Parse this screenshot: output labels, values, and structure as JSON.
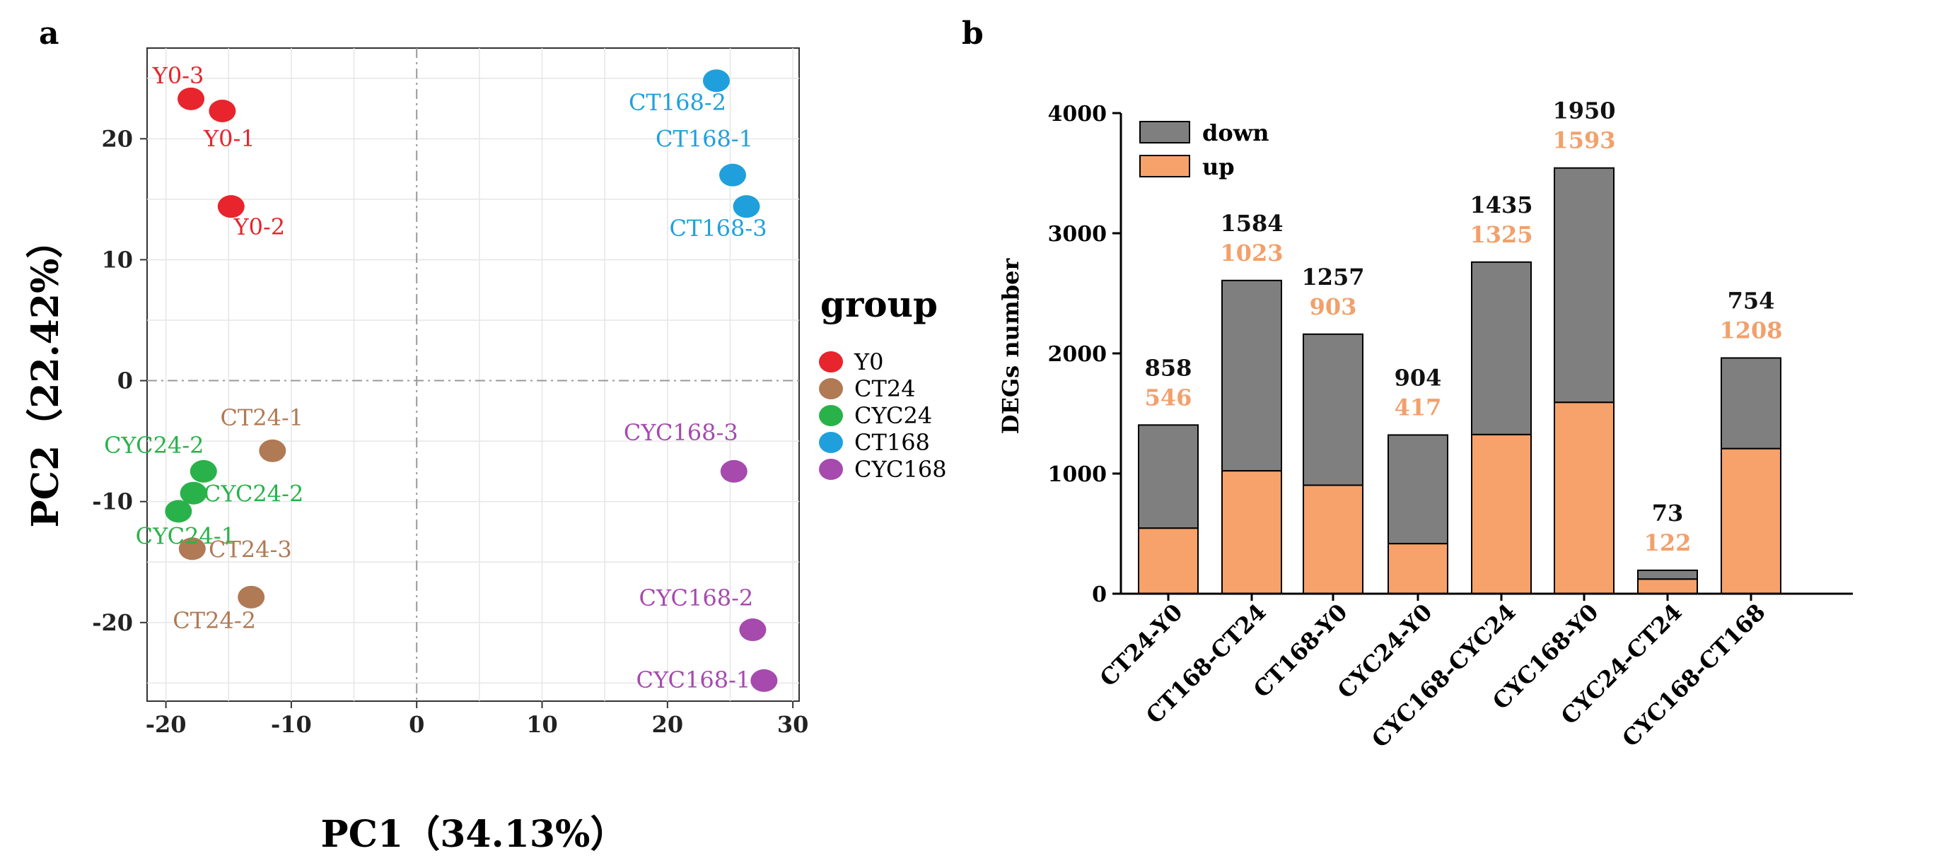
{
  "panels": {
    "a": "a",
    "b": "b"
  },
  "chart_data": [
    {
      "type": "scatter",
      "xlabel": "PC1（34.13%）",
      "ylabel": "PC2（22.42%）",
      "xlim": [
        -21.5,
        30.5
      ],
      "ylim": [
        -26.5,
        27.5
      ],
      "xticks": [
        -20,
        -10,
        0,
        10,
        20,
        30
      ],
      "yticks": [
        -20,
        -10,
        0,
        10,
        20
      ],
      "grid": true,
      "legend": {
        "title": "group",
        "position": "right",
        "items": [
          {
            "name": "Y0",
            "color": "#e8242c"
          },
          {
            "name": "CT24",
            "color": "#b07a55"
          },
          {
            "name": "CYC24",
            "color": "#2ab24a"
          },
          {
            "name": "CT168",
            "color": "#1fa0dc"
          },
          {
            "name": "CYC168",
            "color": "#a64aae"
          }
        ]
      },
      "points": [
        {
          "label": "Y0-3",
          "group": "Y0",
          "x": -18.0,
          "y": 23.3
        },
        {
          "label": "Y0-1",
          "group": "Y0",
          "x": -15.5,
          "y": 22.3
        },
        {
          "label": "Y0-2",
          "group": "Y0",
          "x": -14.8,
          "y": 14.4
        },
        {
          "label": "CT168-2",
          "group": "CT168",
          "x": 23.9,
          "y": 24.8
        },
        {
          "label": "CT168-1",
          "group": "CT168",
          "x": 25.2,
          "y": 17.0
        },
        {
          "label": "CT168-3",
          "group": "CT168",
          "x": 26.3,
          "y": 14.4
        },
        {
          "label": "CT24-1",
          "group": "CT24",
          "x": -11.5,
          "y": -5.8
        },
        {
          "label": "CYC24-2",
          "group": "CYC24",
          "x": -17.0,
          "y": -7.5
        },
        {
          "label": "CYC24-2",
          "group": "CYC24",
          "x": -17.8,
          "y": -9.3
        },
        {
          "label": "CYC24-1",
          "group": "CYC24",
          "x": -19.0,
          "y": -10.8
        },
        {
          "label": "CT24-3",
          "group": "CT24",
          "x": -17.9,
          "y": -13.9
        },
        {
          "label": "CT24-2",
          "group": "CT24",
          "x": -13.2,
          "y": -17.9
        },
        {
          "label": "CYC168-3",
          "group": "CYC168",
          "x": 25.3,
          "y": -7.5
        },
        {
          "label": "CYC168-2",
          "group": "CYC168",
          "x": 26.8,
          "y": -20.6
        },
        {
          "label": "CYC168-1",
          "group": "CYC168",
          "x": 27.7,
          "y": -24.8
        }
      ]
    },
    {
      "type": "bar",
      "stacked": true,
      "ylabel": "DEGs number",
      "ylim": [
        0,
        4000
      ],
      "yticks": [
        0,
        1000,
        2000,
        3000,
        4000
      ],
      "categories": [
        "CT24-Y0",
        "CT168-CT24",
        "CT168-Y0",
        "CYC24-Y0",
        "CYC168-CYC24",
        "CYC168-Y0",
        "CYC24-CT24",
        "CYC168-CT168"
      ],
      "series": [
        {
          "name": "down",
          "color": "#7f7f7f",
          "values": [
            858,
            1584,
            1257,
            904,
            1435,
            1950,
            73,
            754
          ]
        },
        {
          "name": "up",
          "color": "#f7a26a",
          "values": [
            546,
            1023,
            903,
            417,
            1325,
            1593,
            122,
            1208
          ]
        }
      ],
      "legend": {
        "position": "top-left",
        "items": [
          "down",
          "up"
        ]
      },
      "label_colors": {
        "down": "#111111",
        "up": "#f2a06c"
      }
    }
  ]
}
